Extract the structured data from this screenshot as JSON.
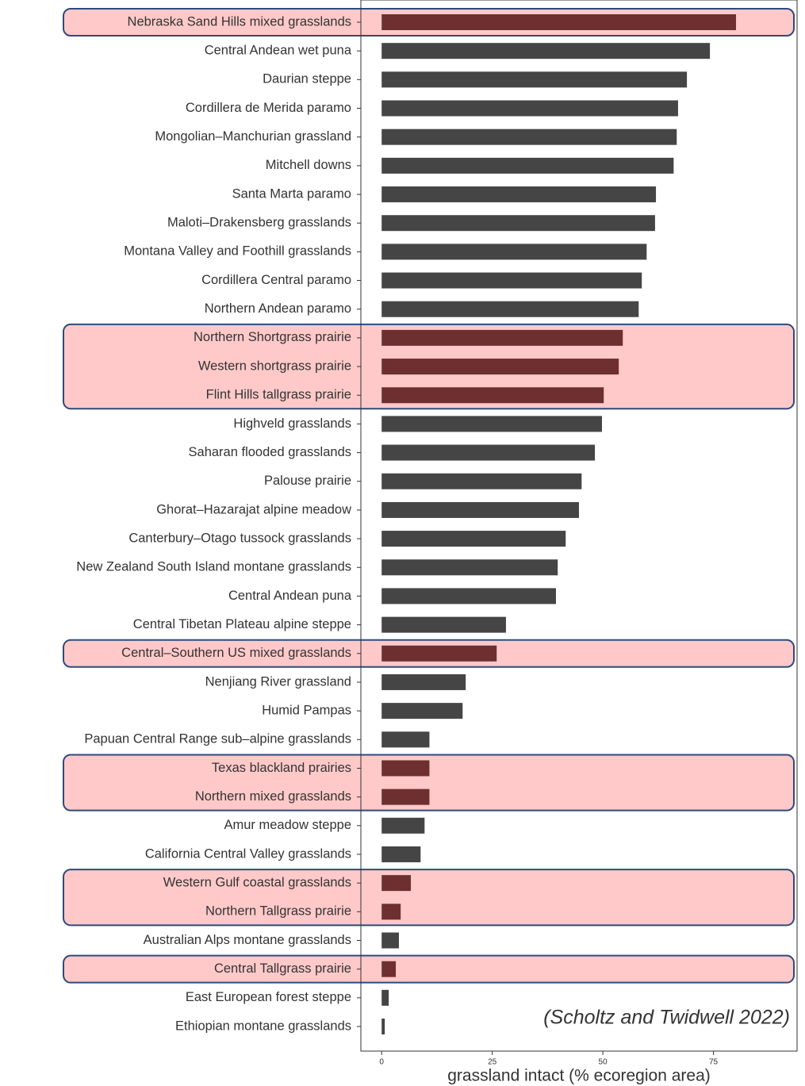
{
  "chart_data": {
    "type": "barh",
    "x_label": "grassland intact (% ecoregion area)",
    "annotation": "(Scholtz and Twidwell 2022)",
    "categories": [
      "Nebraska Sand Hills mixed grasslands",
      "Central Andean wet puna",
      "Daurian steppe",
      "Cordillera de Merida paramo",
      "Mongolian–Manchurian grassland",
      "Mitchell downs",
      "Santa Marta paramo",
      "Maloti–Drakensberg grasslands",
      "Montana Valley and Foothill grasslands",
      "Cordillera Central paramo",
      "Northern Andean paramo",
      "Northern Shortgrass prairie",
      "Western shortgrass prairie",
      "Flint Hills tallgrass prairie",
      "Highveld grasslands",
      "Saharan flooded grasslands",
      "Palouse prairie",
      "Ghorat–Hazarajat alpine meadow",
      "Canterbury–Otago tussock grasslands",
      "New Zealand South Island montane grasslands",
      "Central Andean puna",
      "Central Tibetan Plateau alpine steppe",
      "Central–Southern US mixed grasslands",
      "Nenjiang River grassland",
      "Humid Pampas",
      "Papuan Central Range sub–alpine grasslands",
      "Texas blackland prairies",
      "Northern mixed grasslands",
      "Amur meadow steppe",
      "California Central Valley grasslands",
      "Western Gulf coastal grasslands",
      "Northern Tallgrass prairie",
      "Australian Alps montane grasslands",
      "Central Tallgrass prairie",
      "East European forest steppe",
      "Ethiopian montane grasslands"
    ],
    "values": [
      80.1,
      74.2,
      69.0,
      67.0,
      66.7,
      66.0,
      62.0,
      61.8,
      59.9,
      58.8,
      58.1,
      54.5,
      53.6,
      50.2,
      49.8,
      48.2,
      45.2,
      44.6,
      41.6,
      39.8,
      39.4,
      28.1,
      26.0,
      19.0,
      18.3,
      10.8,
      10.8,
      10.8,
      9.7,
      8.8,
      6.6,
      4.3,
      3.9,
      3.2,
      1.6,
      0.7
    ],
    "color": "#454545",
    "colors": [
      "#6e2f30",
      "#454545",
      "#454545",
      "#454545",
      "#454545",
      "#454545",
      "#454545",
      "#454545",
      "#454545",
      "#454545",
      "#454545",
      "#6e2f30",
      "#6e2f30",
      "#6e2f30",
      "#454545",
      "#454545",
      "#454545",
      "#454545",
      "#454545",
      "#454545",
      "#454545",
      "#454545",
      "#6e2f30",
      "#454545",
      "#454545",
      "#454545",
      "#6e2f30",
      "#6e2f30",
      "#454545",
      "#454545",
      "#6e2f30",
      "#6e2f30",
      "#454545",
      "#6e2f30",
      "#454545",
      "#454545"
    ],
    "xlim": [
      -4.7,
      93.9
    ],
    "xticks": [
      0,
      25,
      50,
      75
    ]
  }
}
